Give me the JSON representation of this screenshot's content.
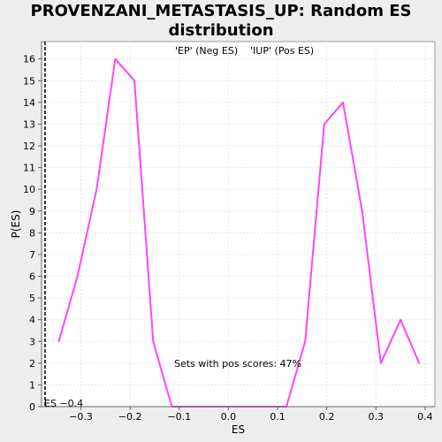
{
  "chart_data": {
    "type": "line",
    "title": "PROVENZANI_METASTASIS_UP: Random ES distribution",
    "xlabel": "ES",
    "ylabel": "P(ES)",
    "xlim": [
      -0.38,
      0.42
    ],
    "ylim": [
      0,
      16.8
    ],
    "x_ticks": [
      -0.3,
      -0.2,
      -0.1,
      0.0,
      0.1,
      0.2,
      0.3,
      0.4
    ],
    "x_tick_labels": [
      "−0.3",
      "−0.2",
      "−0.1",
      "0.0",
      "0.1",
      "0.2",
      "0.3",
      "0.4"
    ],
    "y_ticks": [
      0,
      1,
      2,
      3,
      4,
      5,
      6,
      7,
      8,
      9,
      10,
      11,
      12,
      13,
      14,
      15,
      16
    ],
    "grid": true,
    "series": [
      {
        "color": "#ff44ff",
        "x": [
          -0.345,
          -0.307,
          -0.268,
          -0.23,
          -0.191,
          -0.153,
          -0.115,
          -0.076,
          -0.038,
          0.0,
          0.04,
          0.078,
          0.118,
          0.156,
          0.195,
          0.233,
          0.272,
          0.31,
          0.35,
          0.388
        ],
        "y": [
          3,
          6,
          10,
          16,
          15,
          3,
          0,
          0,
          0,
          0,
          0,
          0,
          0,
          3,
          13,
          14,
          9,
          2,
          4,
          2
        ]
      }
    ],
    "legend": [
      {
        "label": "'EP' (Neg ES)",
        "color": "#3333cc"
      },
      {
        "label": "'IUP' (Pos ES)",
        "color": "#dd3333"
      }
    ],
    "annotations": {
      "pos_scores": "Sets with pos scores: 47%",
      "es_marker_label": "ES −0.4"
    },
    "es_marker_x": -0.373
  }
}
